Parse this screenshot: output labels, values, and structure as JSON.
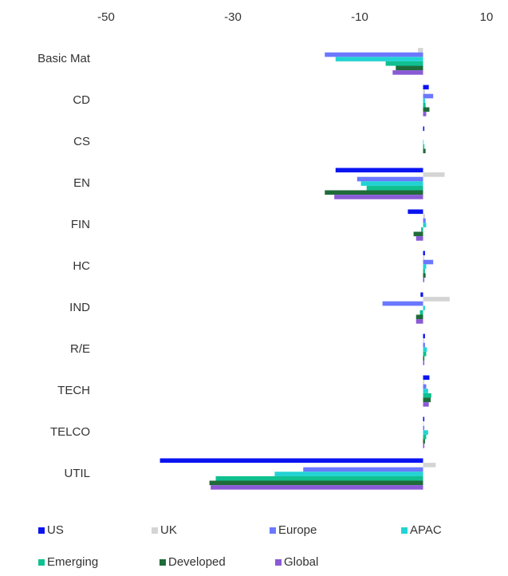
{
  "chart_data": {
    "type": "hbar",
    "categories": [
      "Basic Mat",
      "CD",
      "CS",
      "EN",
      "FIN",
      "HC",
      "IND",
      "R/E",
      "TECH",
      "TELCO",
      "UTIL"
    ],
    "series": [
      {
        "name": "US",
        "color": "#0a14f0",
        "values": [
          0,
          0.9,
          0.2,
          -13.8,
          -2.4,
          0.3,
          -0.4,
          0.3,
          1.0,
          0.2,
          -41.5
        ]
      },
      {
        "name": "UK",
        "color": "#d4d4d4",
        "values": [
          -0.8,
          0.3,
          0,
          3.4,
          0.3,
          0.2,
          4.2,
          0.2,
          0.2,
          0.1,
          2.0
        ]
      },
      {
        "name": "Europe",
        "color": "#6b78ff",
        "values": [
          -15.5,
          1.6,
          0,
          -10.4,
          0.4,
          1.6,
          -6.4,
          0.3,
          0.5,
          0.2,
          -18.9
        ]
      },
      {
        "name": "APAC",
        "color": "#22d3d3",
        "values": [
          -13.8,
          0.3,
          0.1,
          -9.8,
          0.5,
          0.5,
          0.3,
          0.6,
          0.8,
          0.8,
          -23.4
        ]
      },
      {
        "name": "Emerging",
        "color": "#10c090",
        "values": [
          -5.9,
          0.4,
          0.2,
          -8.9,
          -0.3,
          0.3,
          -0.5,
          0.5,
          1.3,
          0.5,
          -32.7
        ]
      },
      {
        "name": "Developed",
        "color": "#1f6b3a",
        "values": [
          -4.3,
          1.0,
          0.4,
          -15.5,
          -1.5,
          0.4,
          -1.1,
          0.2,
          1.2,
          0.3,
          -33.7
        ]
      },
      {
        "name": "Global",
        "color": "#8a5ad6",
        "values": [
          -4.8,
          0.5,
          0,
          -14.0,
          -1.1,
          0.2,
          -1.1,
          0.2,
          0.9,
          0.2,
          -33.5
        ]
      }
    ],
    "xlim": [
      -50,
      10
    ],
    "xticks": [
      -50,
      -30,
      -10,
      10
    ]
  }
}
